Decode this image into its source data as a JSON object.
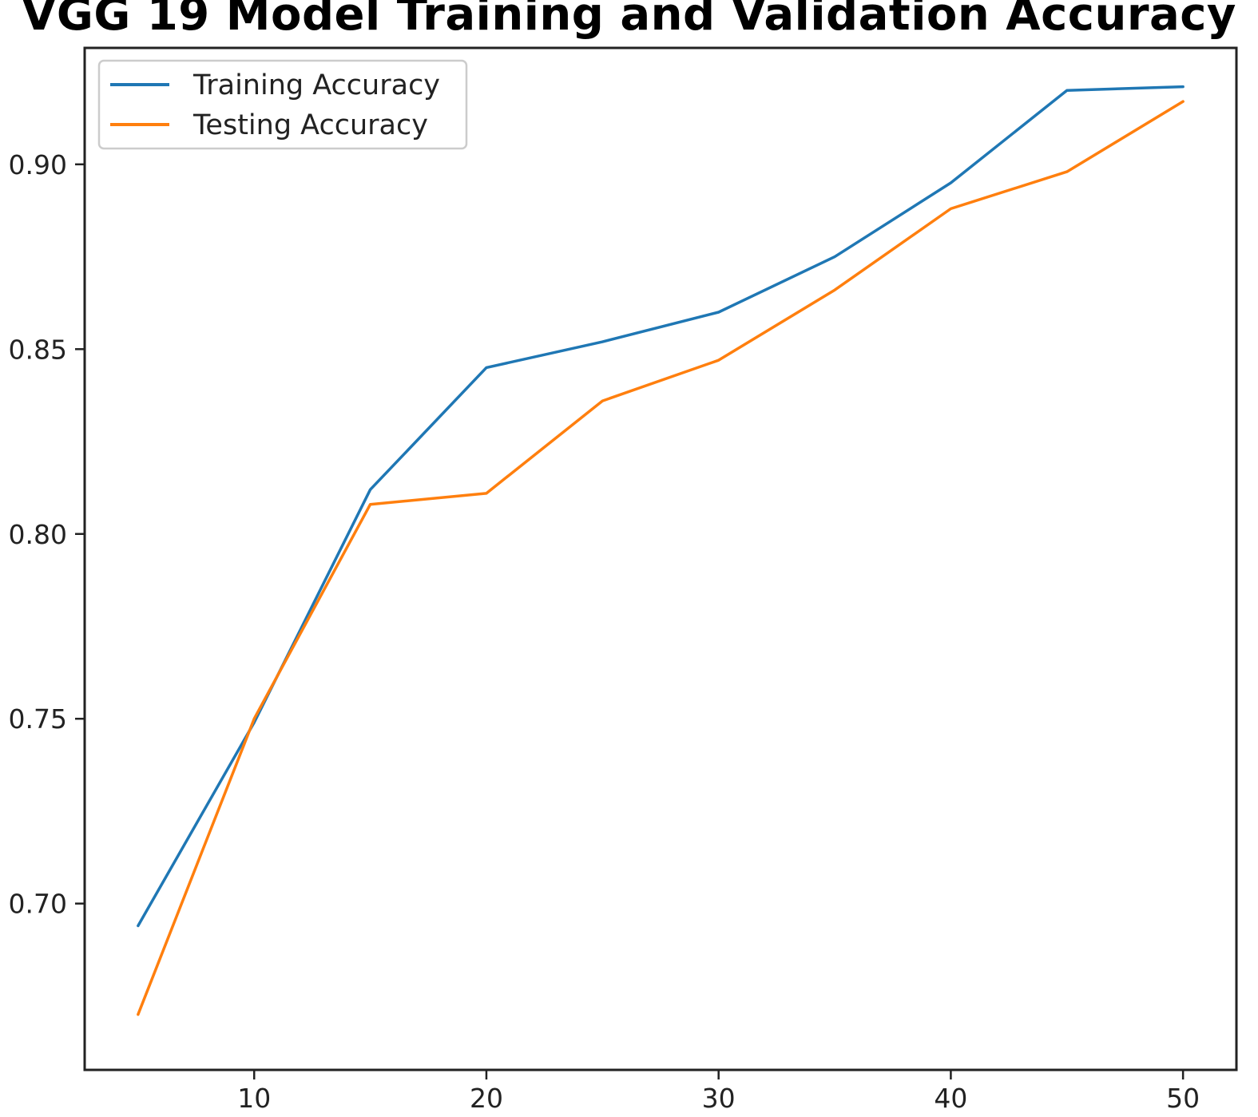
{
  "chart_data": {
    "type": "line",
    "title": "VGG 19 Model Training and Validation Accuracy",
    "xlabel": "",
    "ylabel": "",
    "x": [
      5,
      10,
      15,
      20,
      25,
      30,
      35,
      40,
      45,
      50
    ],
    "series": [
      {
        "name": "Training Accuracy",
        "color": "#1f77b4",
        "values": [
          0.694,
          0.749,
          0.812,
          0.845,
          0.852,
          0.86,
          0.875,
          0.895,
          0.92,
          0.921
        ]
      },
      {
        "name": "Testing Accuracy",
        "color": "#ff7f0e",
        "values": [
          0.67,
          0.75,
          0.808,
          0.811,
          0.836,
          0.847,
          0.866,
          0.888,
          0.898,
          0.917
        ]
      }
    ],
    "xlim": [
      2.7,
      52.3
    ],
    "ylim": [
      0.655,
      0.9315
    ],
    "xticks": [
      10,
      20,
      30,
      40,
      50
    ],
    "xtick_labels": [
      "10",
      "20",
      "30",
      "40",
      "50"
    ],
    "yticks": [
      0.7,
      0.75,
      0.8,
      0.85,
      0.9
    ],
    "ytick_labels": [
      "0.70",
      "0.75",
      "0.80",
      "0.85",
      "0.90"
    ],
    "grid": false,
    "legend_position": "top-left"
  }
}
